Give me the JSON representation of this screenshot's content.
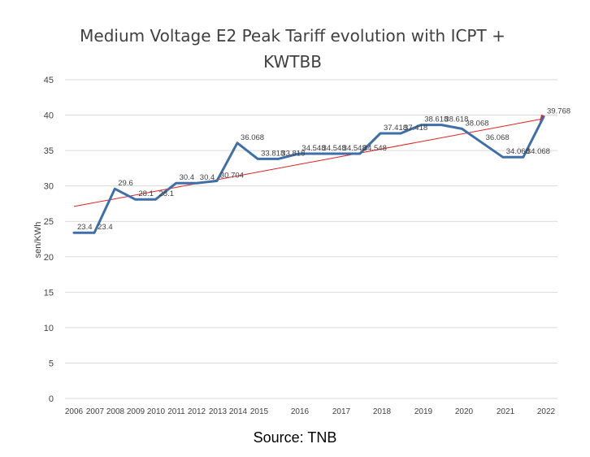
{
  "chart_data": {
    "type": "line",
    "title": "Medium Voltage E2 Peak Tariff evolution with ICPT + KWTBB",
    "ylabel": "sen/KWh",
    "xlabel": "",
    "ylim": [
      0,
      45
    ],
    "yticks": [
      0,
      5,
      10,
      15,
      20,
      25,
      30,
      35,
      40,
      45
    ],
    "grid": true,
    "x_tick_labels": [
      "2006",
      "2007",
      "2008",
      "2009",
      "2010",
      "2011",
      "2012",
      "2013",
      "2014",
      "2015",
      "2016",
      "2017",
      "2018",
      "2019",
      "2020",
      "2021",
      "2022"
    ],
    "values": [
      23.4,
      23.4,
      29.6,
      28.1,
      28.1,
      30.4,
      30.4,
      30.704,
      36.068,
      33.818,
      33.818,
      34.548,
      34.548,
      34.548,
      34.548,
      37.418,
      37.418,
      38.618,
      38.618,
      38.068,
      36.068,
      34.068,
      34.068,
      39.768
    ],
    "data_labels": [
      "23.4",
      "23.4",
      "29.6",
      "28.1",
      "28.1",
      "30.4",
      "30.4",
      "30.704",
      "36.068",
      "33.818",
      "33.818",
      "34.548",
      "34.548",
      "34.548",
      "34.548",
      "37.418",
      "37.418",
      "38.618",
      "38.618",
      "38.068",
      "36.068",
      "34.068",
      "34.068",
      "39.768"
    ],
    "trendline": {
      "start": 27.1,
      "end": 39.5
    },
    "colors": {
      "line": "#3f6fa8",
      "trend": "#e02020",
      "grid": "#d9d9d9",
      "text": "#404040"
    }
  },
  "source": "Source: TNB"
}
